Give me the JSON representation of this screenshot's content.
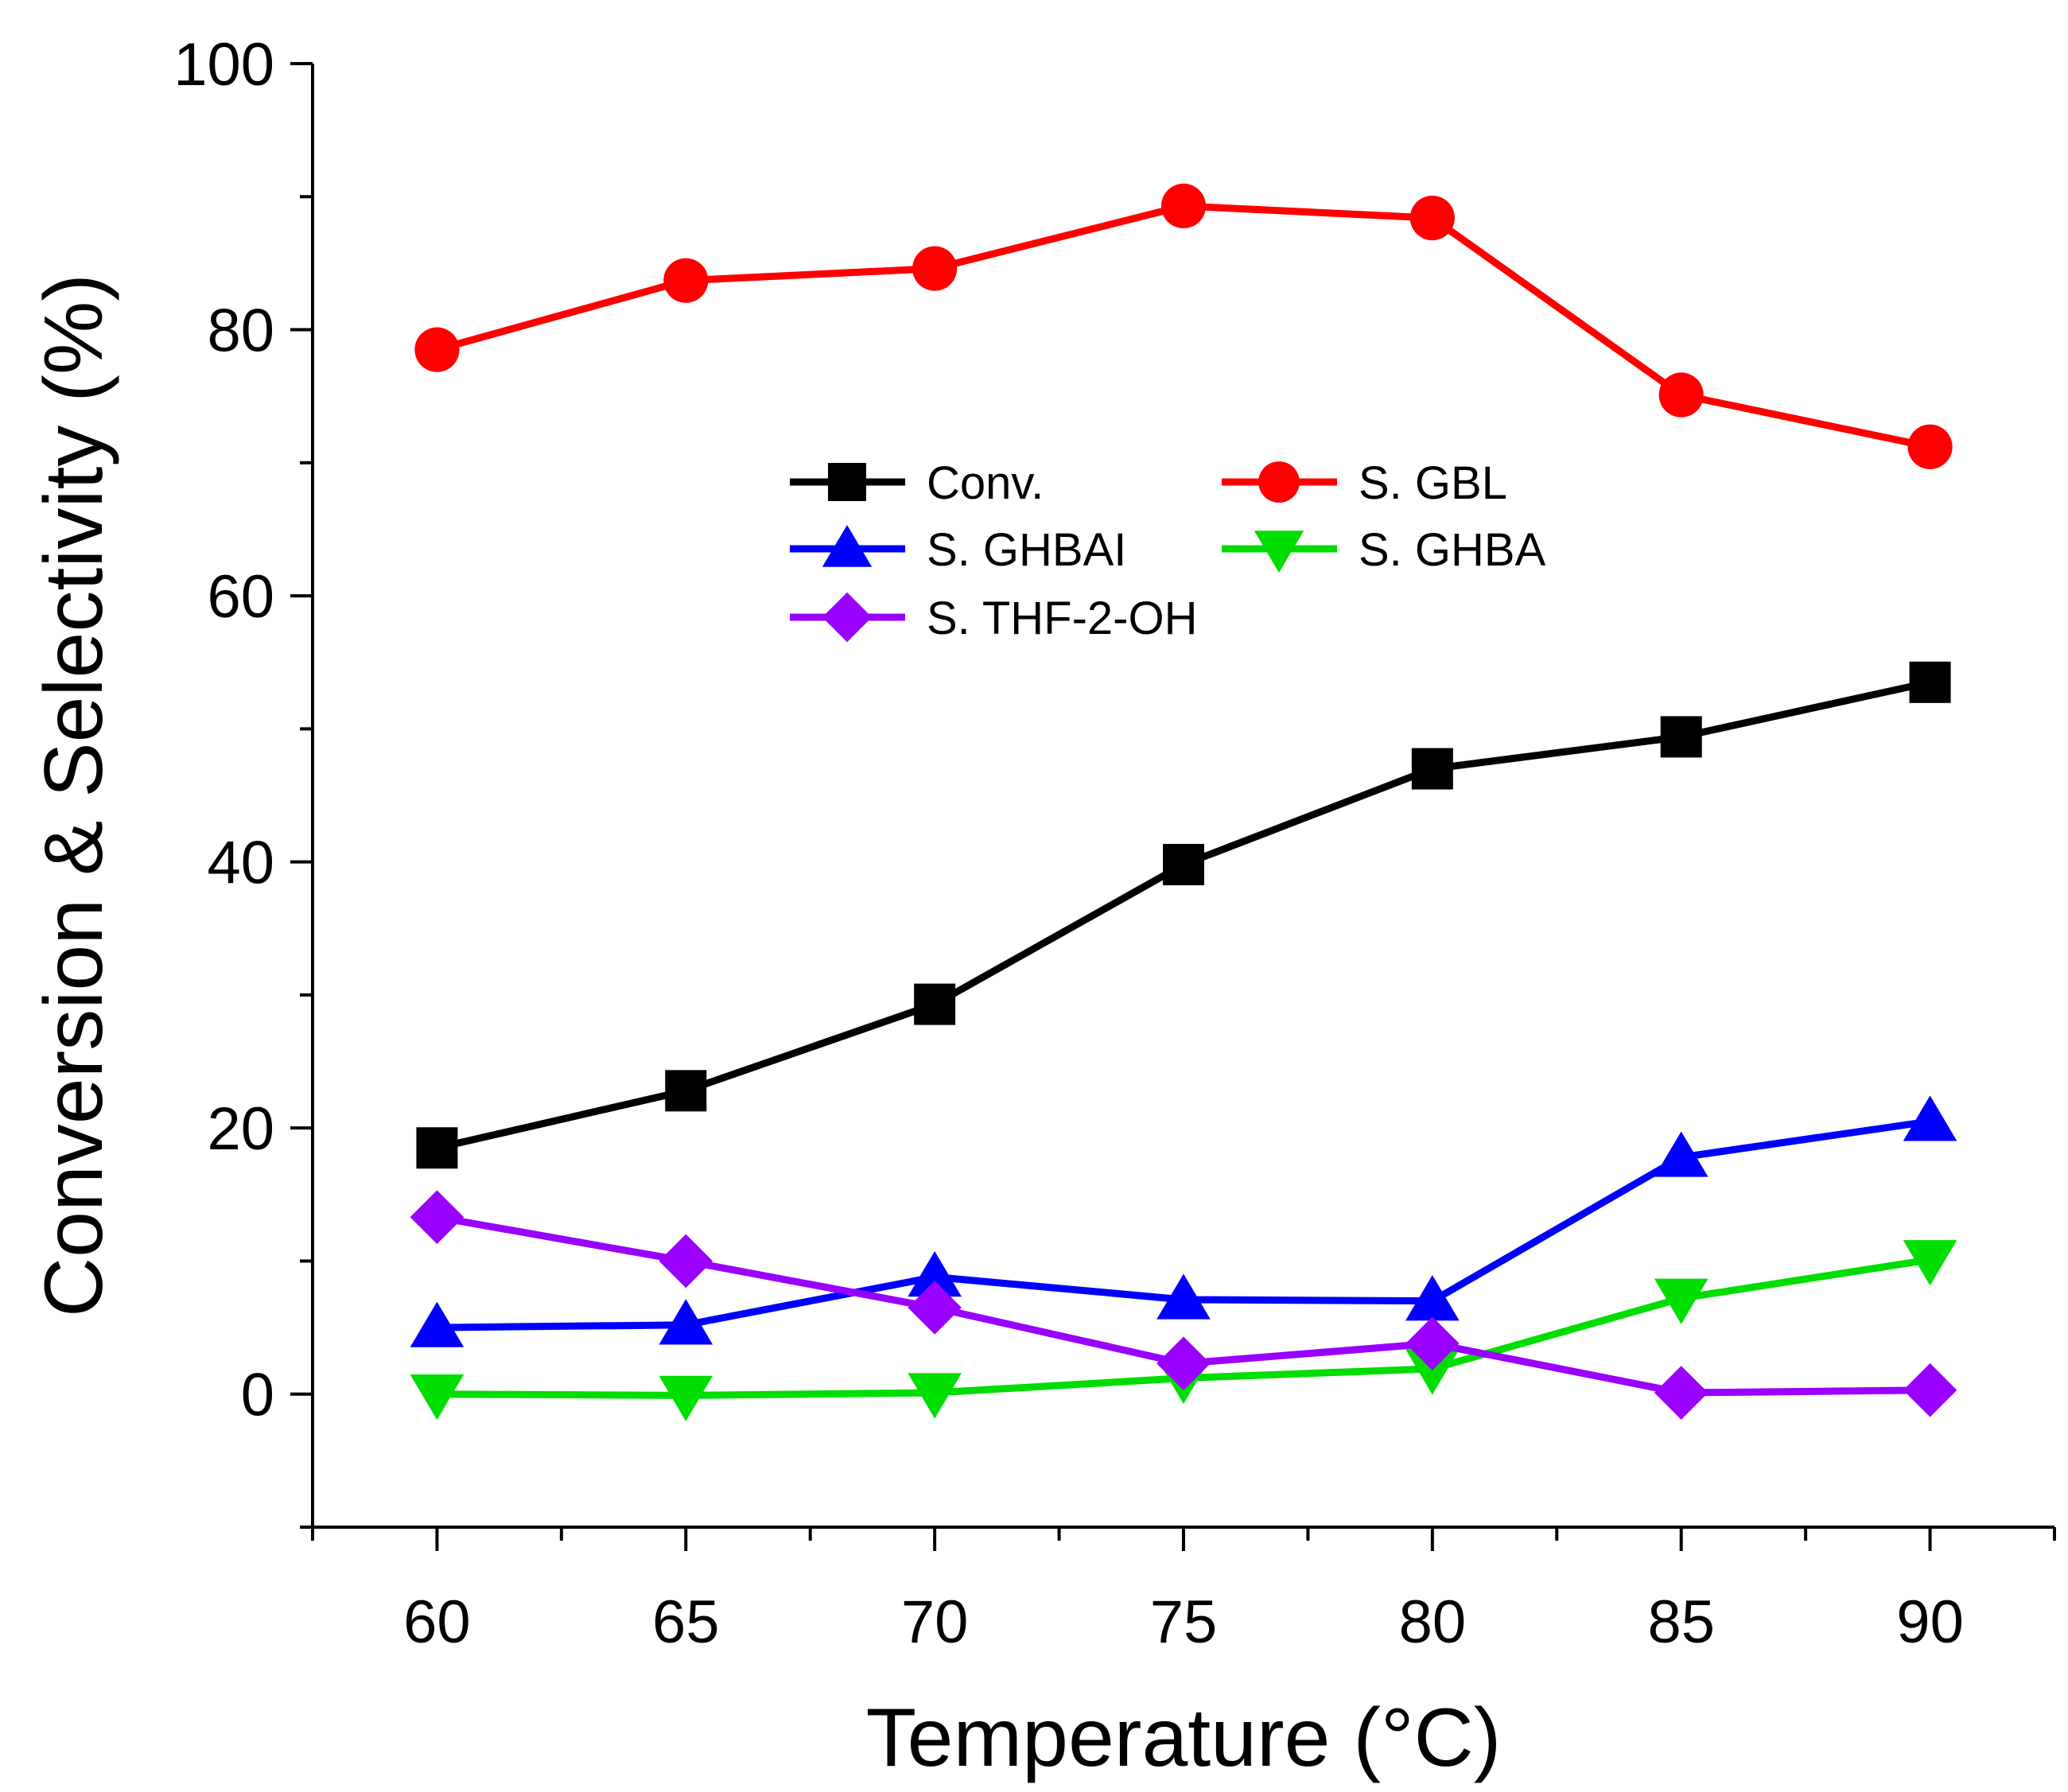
{
  "chart_data": {
    "type": "line",
    "title": "",
    "xlabel": "Temperature  (°C)",
    "ylabel": "Conversion & Selectivity (%)",
    "x": [
      60,
      65,
      70,
      75,
      80,
      85,
      90
    ],
    "xlim": [
      57.5,
      92.5
    ],
    "ylim": [
      -10,
      100
    ],
    "xticks": [
      60,
      65,
      70,
      75,
      80,
      85,
      90
    ],
    "yticks": [
      0,
      20,
      40,
      60,
      80,
      100
    ],
    "grid": false,
    "legend_position": "center",
    "series": [
      {
        "name": "Conv.",
        "color": "#000000",
        "marker": "square",
        "values": [
          18.5,
          22.8,
          29.3,
          39.8,
          47.0,
          49.4,
          53.5
        ]
      },
      {
        "name": "S. GBL",
        "color": "#ff0000",
        "marker": "circle",
        "values": [
          78.5,
          83.7,
          84.6,
          89.3,
          88.4,
          75.1,
          71.2
        ]
      },
      {
        "name": "S. GHBAI",
        "color": "#0000ff",
        "marker": "triangle-up",
        "values": [
          5.0,
          5.2,
          8.8,
          7.1,
          7.0,
          17.8,
          20.5
        ]
      },
      {
        "name": "S. GHBA",
        "color": "#00dd00",
        "marker": "triangle-down",
        "values": [
          0.0,
          -0.1,
          0.1,
          1.2,
          1.9,
          7.2,
          10.1
        ]
      },
      {
        "name": "S. THF-2-OH",
        "color": "#9900ff",
        "marker": "diamond",
        "values": [
          13.3,
          10.0,
          6.5,
          2.3,
          3.8,
          0.1,
          0.3
        ]
      }
    ]
  }
}
